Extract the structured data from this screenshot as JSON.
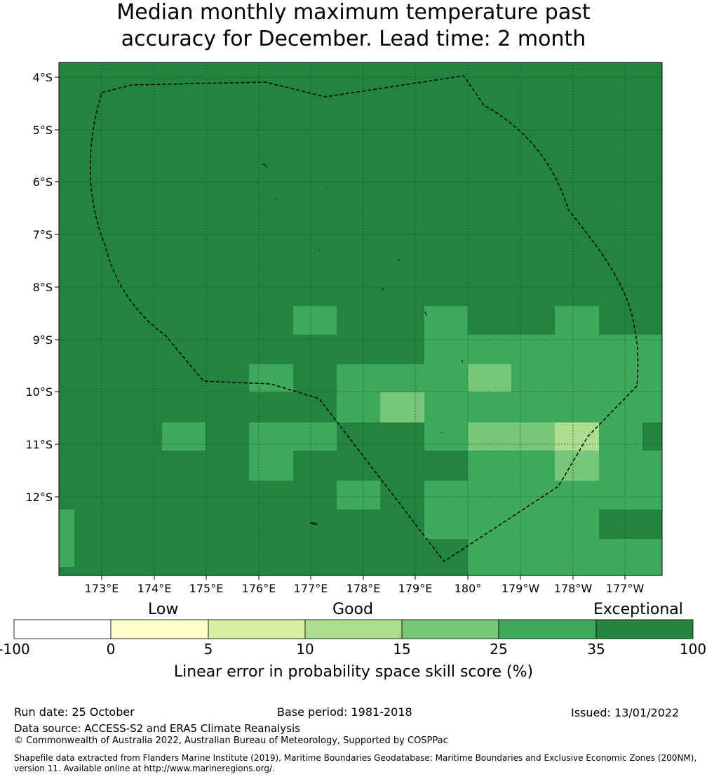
{
  "title_line1": "Median monthly maximum temperature past",
  "title_line2": "accuracy for December. Lead time: 2 month",
  "map": {
    "lon_ticks": [
      "173°E",
      "174°E",
      "175°E",
      "176°E",
      "177°E",
      "178°E",
      "179°E",
      "180°",
      "179°W",
      "178°W",
      "177°W"
    ],
    "lat_ticks": [
      "4°S",
      "5°S",
      "6°S",
      "7°S",
      "8°S",
      "9°S",
      "10°S",
      "11°S",
      "12°S"
    ],
    "colors": {
      "exceptional": "#23843f",
      "very_good": "#3fa95b",
      "good": "#78c679",
      "fair": "#addd8e",
      "low": "#d9f0a3",
      "marginal": "#ffffcc",
      "poor": "#ffffff"
    }
  },
  "colorbar": {
    "category_labels": [
      "Low",
      "Good",
      "Exceptional"
    ],
    "tick_labels": [
      "-100",
      "0",
      "5",
      "10",
      "15",
      "25",
      "35",
      "100"
    ],
    "segment_colors": [
      "#ffffff",
      "#ffffcc",
      "#d9f0a3",
      "#addd8e",
      "#78c679",
      "#3fa95b",
      "#23843f"
    ],
    "axis_label": "Linear error in probability space skill score (%)"
  },
  "footer": {
    "run_date": "Run date: 25 October",
    "base_period": "Base period: 1981-2018",
    "issued": "Issued: 13/01/2022",
    "data_source": "Data source: ACCESS-S2 and ERA5 Climate Reanalysis",
    "copyright": "© Commonwealth of Australia 2022, Australian Bureau of Meteorology, Supported by COSPPac",
    "shapefile_line1": "Shapefile data extracted from Flanders Marine Institute (2019), Maritime Boundaries Geodatabase: Maritime Boundaries and Exclusive Economic Zones (200NM),",
    "shapefile_line2": "version 11. Available online at http://www.marineregions.org/."
  }
}
